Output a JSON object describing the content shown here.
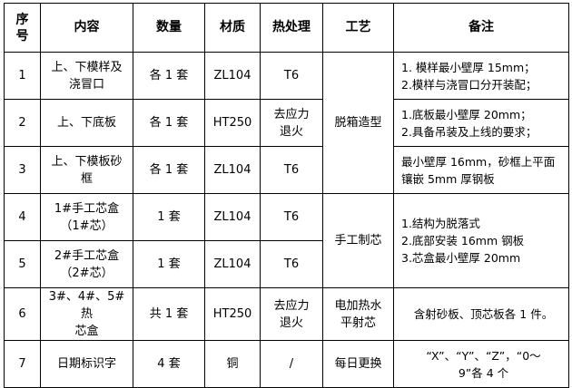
{
  "headers": [
    "序号",
    "内容",
    "数量",
    "材质",
    "热处理",
    "工艺",
    "备注"
  ],
  "rows": [
    {
      "no": "1",
      "content": [
        "上、下模样及",
        "浇冒口"
      ],
      "qty": "各 1 套",
      "material": "ZL104",
      "heat": [
        "T6"
      ],
      "note": [
        "1.  模样最小壁厚 15mm；",
        "2.模样与浇冒口分开装配；"
      ]
    },
    {
      "no": "2",
      "content": [
        "上、下底板"
      ],
      "qty": "各 1 套",
      "material": "HT250",
      "heat": [
        "去应力",
        "退火"
      ],
      "note": [
        "1.底板最小壁厚 20mm；",
        "2.具备吊装及上线的要求；"
      ]
    },
    {
      "no": "3",
      "content": [
        "上、下模板砂",
        "框"
      ],
      "qty": "各 1 套",
      "material": "ZL104",
      "heat": [
        "T6"
      ],
      "note": [
        "最小壁厚 16mm，砂框上平面",
        "镶嵌 5mm 厚钢板"
      ]
    },
    {
      "no": "4",
      "content": [
        "1#手工芯盒",
        "（1#芯）"
      ],
      "qty": "1 套",
      "material": "ZL104",
      "heat": [
        "T6"
      ]
    },
    {
      "no": "5",
      "content": [
        "2#手工芯盒",
        "（2#芯）"
      ],
      "qty": "1 套",
      "material": "ZL104",
      "heat": [
        "T6"
      ]
    },
    {
      "no": "6",
      "content": [
        "3#、4#、5#热",
        "芯盒"
      ],
      "qty": "共 1 套",
      "material": "HT250",
      "heat": [
        "去应力",
        "退火"
      ],
      "process": [
        "电加热水",
        "平射芯"
      ],
      "note": [
        "含射砂板、顶芯板各 1 件。"
      ]
    },
    {
      "no": "7",
      "content": [
        "日期标识字"
      ],
      "qty": "4 套",
      "material": "铜",
      "heat": [
        "/"
      ],
      "process": [
        "每日更换"
      ],
      "note": [
        "“X”、“Y”、“Z”，“0～",
        "9”各 4 个"
      ]
    }
  ],
  "process_1_3": "脱箱造型",
  "process_4_5": "手工制芯",
  "note_4_5": [
    "1.结构为脱落式",
    "2.底部安装 16mm 钢板",
    "3.芯盒最小壁厚 20mm"
  ]
}
